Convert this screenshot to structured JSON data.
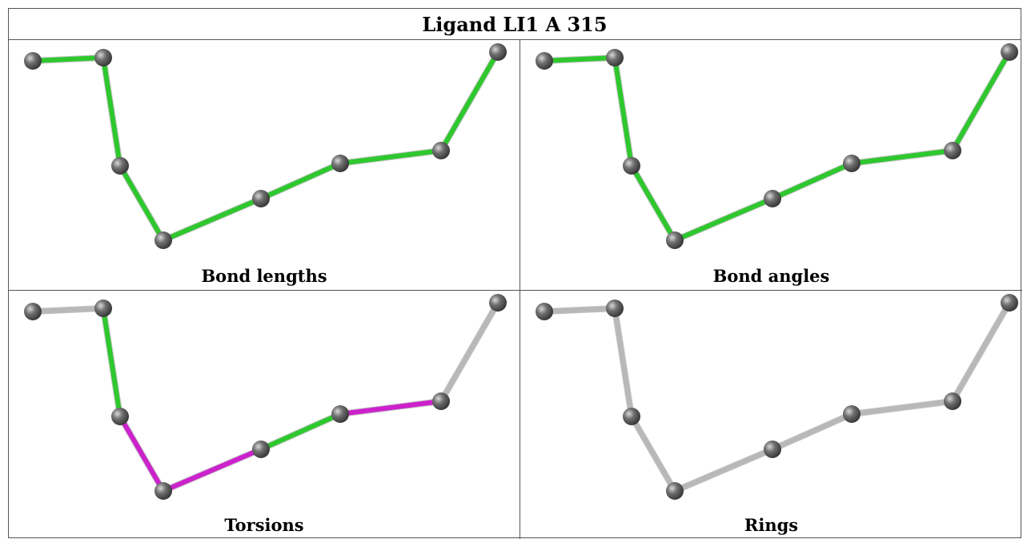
{
  "title": "Ligand LI1 A 315",
  "panels": [
    {
      "caption": "Bond lengths",
      "bond_colors": [
        "green",
        "green",
        "green",
        "green",
        "green",
        "green",
        "green",
        "green"
      ]
    },
    {
      "caption": "Bond angles",
      "bond_colors": [
        "green",
        "green",
        "green",
        "green",
        "green",
        "green",
        "green",
        "green"
      ]
    },
    {
      "caption": "Torsions",
      "bond_colors": [
        "gray",
        "green",
        "magenta",
        "magenta",
        "green",
        "magenta",
        "gray",
        "gray"
      ]
    },
    {
      "caption": "Rings",
      "bond_colors": [
        "gray",
        "gray",
        "gray",
        "gray",
        "gray",
        "gray",
        "gray",
        "gray"
      ]
    }
  ],
  "colors": {
    "green": "#2ec82e",
    "magenta": "#cc22cc",
    "gray": "#b8b8b8",
    "atom": "#707070"
  }
}
